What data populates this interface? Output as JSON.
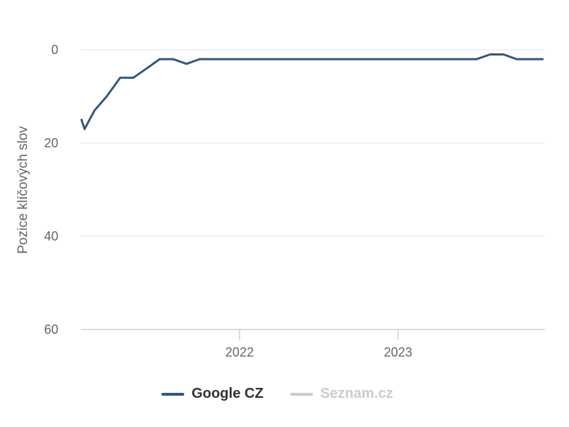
{
  "chart_data": {
    "type": "line",
    "title": "",
    "xlabel": "",
    "ylabel": "Pozice klíčových slov",
    "y_reversed": true,
    "ylim": [
      0,
      60
    ],
    "y_ticks": [
      0,
      20,
      40,
      60
    ],
    "x_tick_labels": [
      "2022",
      "2023"
    ],
    "grid": "horizontal",
    "legend_position": "bottom-center",
    "series": [
      {
        "name": "Google CZ",
        "color": "#34587a",
        "visible": true,
        "points": [
          [
            "2021-01-02",
            15
          ],
          [
            "2021-01-09",
            17
          ],
          [
            "2021-02-01",
            13
          ],
          [
            "2021-03-01",
            10
          ],
          [
            "2021-04-01",
            6
          ],
          [
            "2021-05-01",
            6
          ],
          [
            "2021-06-01",
            4
          ],
          [
            "2021-07-01",
            2
          ],
          [
            "2021-08-01",
            2
          ],
          [
            "2021-09-01",
            3
          ],
          [
            "2021-10-01",
            2
          ],
          [
            "2021-11-01",
            2
          ],
          [
            "2021-12-01",
            2
          ],
          [
            "2022-06-01",
            2
          ],
          [
            "2023-01-01",
            2
          ],
          [
            "2023-07-01",
            2
          ],
          [
            "2023-08-01",
            1
          ],
          [
            "2023-09-01",
            1
          ],
          [
            "2023-10-01",
            2
          ],
          [
            "2023-11-30",
            2
          ]
        ]
      },
      {
        "name": "Seznam.cz",
        "color": "#cccccc",
        "visible": false,
        "points": []
      }
    ]
  },
  "colors": {
    "gridline": "#e2e6ea",
    "axis_line": "#c8d4e0",
    "tick_text": "#666666",
    "legend_active_text": "#333333",
    "legend_inactive_text": "#cccccc"
  }
}
